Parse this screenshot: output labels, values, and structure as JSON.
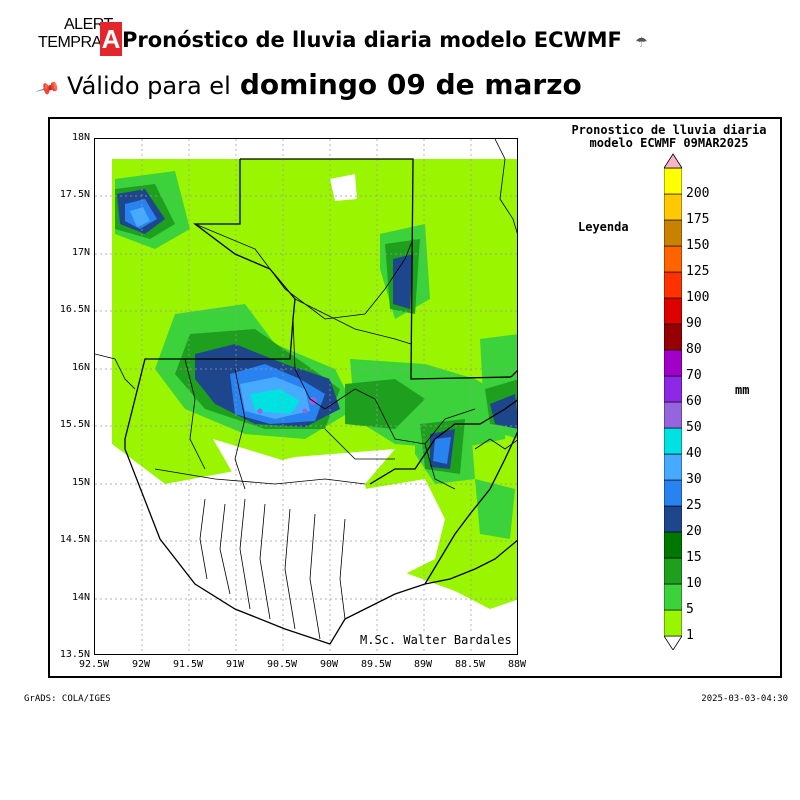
{
  "header": {
    "logo_line1": "ALERT",
    "logo_line2": "TEMPRAN",
    "logo_letter": "A",
    "title": "Pronóstico de lluvia diaria modelo ECWMF",
    "title_icon": "rain-cloud-icon",
    "pin_icon": "pushpin-icon",
    "subtitle_prefix": "Válido para el",
    "subtitle_date": "domingo 09 de marzo"
  },
  "map": {
    "y_ticks": [
      "18N",
      "17.5N",
      "17N",
      "16.5N",
      "16N",
      "15.5N",
      "15N",
      "14.5N",
      "14N",
      "13.5N"
    ],
    "x_ticks": [
      "92.5W",
      "92W",
      "91.5W",
      "91W",
      "90.5W",
      "90W",
      "89.5W",
      "89W",
      "88.5W",
      "88W"
    ],
    "lat_range": [
      13.5,
      18
    ],
    "lon_range": [
      -92.5,
      -88
    ],
    "credit": "M.Sc. Walter Bardales"
  },
  "legend": {
    "title_line1": "Pronostico de lluvia diaria",
    "title_line2": "modelo ECWMF   09MAR2025",
    "label": "Leyenda",
    "unit": "mm",
    "levels": [
      "1",
      "5",
      "10",
      "15",
      "20",
      "25",
      "30",
      "40",
      "50",
      "60",
      "70",
      "80",
      "90",
      "100",
      "125",
      "150",
      "175",
      "200"
    ],
    "colors": [
      "#9af500",
      "#3cd23c",
      "#1ea01e",
      "#007800",
      "#1e468c",
      "#2882f0",
      "#46aaff",
      "#00e1e1",
      "#9664dc",
      "#8c28e6",
      "#a000c8",
      "#960000",
      "#dc0000",
      "#ff3200",
      "#ff6400",
      "#c88200",
      "#ffc800",
      "#ffff00",
      "#fab4c8"
    ]
  },
  "footer": {
    "left": "GrADS: COLA/IGES",
    "right": "2025-03-03-04:30"
  }
}
